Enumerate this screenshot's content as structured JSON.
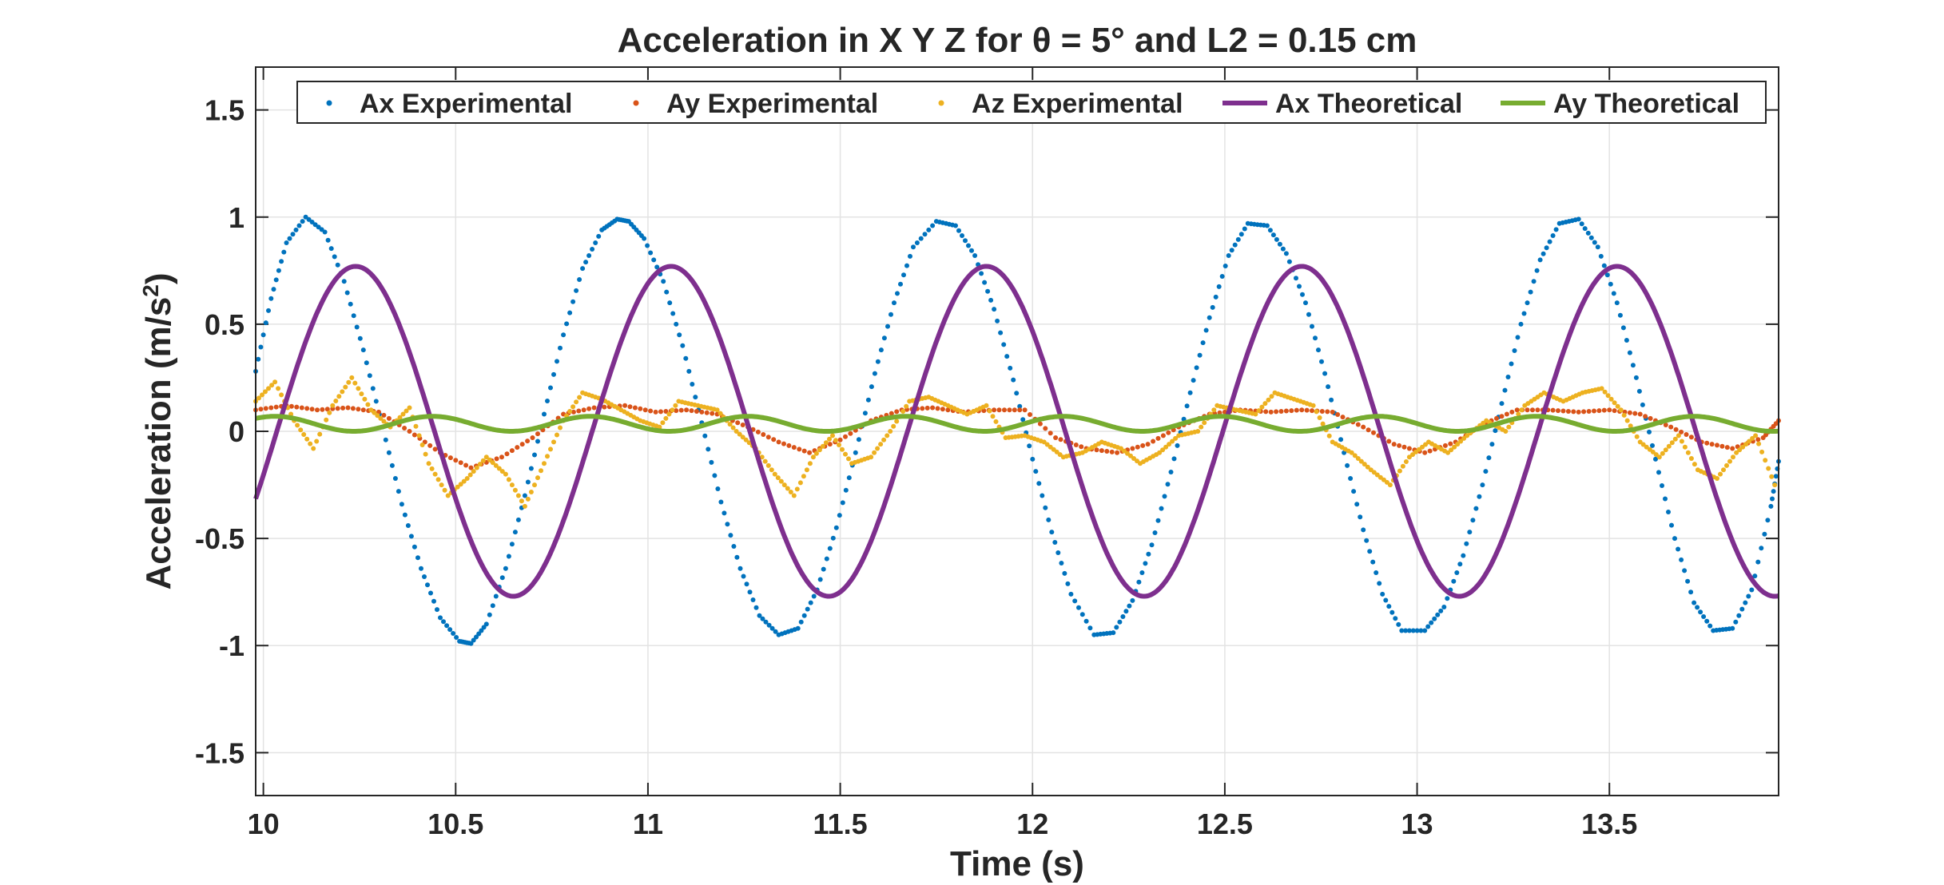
{
  "chart_data": {
    "type": "line",
    "title": "Acceleration in X Y Z for θ = 5° and L2 = 0.15 cm",
    "xlabel": "Time (s)",
    "ylabel_main": "Acceleration (m/s",
    "ylabel_sup": "2",
    "ylabel_close": ")",
    "xlim": [
      9.98,
      13.94
    ],
    "ylim": [
      -1.7,
      1.7
    ],
    "xticks": [
      10,
      10.5,
      11,
      11.5,
      12,
      12.5,
      13,
      13.5
    ],
    "xtick_labels": [
      "10",
      "10.5",
      "11",
      "11.5",
      "12",
      "12.5",
      "13",
      "13.5"
    ],
    "yticks": [
      -1.5,
      -1,
      -0.5,
      0,
      0.5,
      1,
      1.5
    ],
    "ytick_labels": [
      "-1.5",
      "-1",
      "-0.5",
      "0",
      "0.5",
      "1",
      "1.5"
    ],
    "grid": true,
    "legend_position": "top",
    "colors": {
      "ax_exp": "#0072bd",
      "ay_exp": "#d95319",
      "az_exp": "#edb120",
      "ax_theo": "#7e2f8e",
      "ay_theo": "#77ac30"
    },
    "series": [
      {
        "name": "Ax Experimental",
        "style": "dots",
        "color": "#0072bd",
        "x": [
          9.98,
          10.02,
          10.06,
          10.11,
          10.16,
          10.21,
          10.26,
          10.31,
          10.36,
          10.41,
          10.46,
          10.51,
          10.54,
          10.58,
          10.63,
          10.68,
          10.73,
          10.78,
          10.83,
          10.88,
          10.92,
          10.95,
          10.99,
          11.04,
          11.09,
          11.14,
          11.19,
          11.24,
          11.29,
          11.34,
          11.39,
          11.44,
          11.49,
          11.54,
          11.59,
          11.64,
          11.69,
          11.75,
          11.8,
          11.85,
          11.9,
          11.95,
          12.0,
          12.05,
          12.1,
          12.16,
          12.21,
          12.26,
          12.31,
          12.36,
          12.41,
          12.46,
          12.51,
          12.56,
          12.61,
          12.66,
          12.71,
          12.76,
          12.81,
          12.86,
          12.91,
          12.96,
          13.02,
          13.07,
          13.12,
          13.17,
          13.22,
          13.27,
          13.32,
          13.37,
          13.42,
          13.47,
          13.52,
          13.57,
          13.62,
          13.67,
          13.72,
          13.77,
          13.82,
          13.87,
          13.92,
          13.94
        ],
        "y": [
          0.28,
          0.62,
          0.88,
          1.0,
          0.93,
          0.7,
          0.38,
          0.02,
          -0.34,
          -0.64,
          -0.87,
          -0.98,
          -0.99,
          -0.9,
          -0.64,
          -0.3,
          0.08,
          0.45,
          0.76,
          0.94,
          0.99,
          0.98,
          0.9,
          0.7,
          0.4,
          0.04,
          -0.33,
          -0.64,
          -0.86,
          -0.95,
          -0.92,
          -0.74,
          -0.45,
          -0.1,
          0.27,
          0.6,
          0.86,
          0.98,
          0.96,
          0.82,
          0.57,
          0.24,
          -0.13,
          -0.47,
          -0.76,
          -0.95,
          -0.94,
          -0.79,
          -0.53,
          -0.19,
          0.18,
          0.53,
          0.82,
          0.97,
          0.96,
          0.83,
          0.6,
          0.27,
          -0.1,
          -0.46,
          -0.76,
          -0.93,
          -0.93,
          -0.82,
          -0.58,
          -0.25,
          0.13,
          0.5,
          0.8,
          0.97,
          0.99,
          0.86,
          0.6,
          0.25,
          -0.13,
          -0.5,
          -0.8,
          -0.93,
          -0.92,
          -0.74,
          -0.35,
          -0.14
        ]
      },
      {
        "name": "Ay Experimental",
        "style": "dots",
        "color": "#d95319",
        "x": [
          9.98,
          10.06,
          10.14,
          10.22,
          10.3,
          10.38,
          10.46,
          10.54,
          10.62,
          10.7,
          10.78,
          10.86,
          10.94,
          11.02,
          11.1,
          11.18,
          11.26,
          11.34,
          11.42,
          11.5,
          11.58,
          11.66,
          11.74,
          11.82,
          11.9,
          11.98,
          12.06,
          12.14,
          12.22,
          12.3,
          12.38,
          12.46,
          12.54,
          12.62,
          12.7,
          12.78,
          12.86,
          12.94,
          13.02,
          13.1,
          13.18,
          13.26,
          13.34,
          13.42,
          13.5,
          13.58,
          13.66,
          13.74,
          13.82,
          13.9,
          13.94
        ],
        "y": [
          0.1,
          0.12,
          0.1,
          0.11,
          0.09,
          0.0,
          -0.1,
          -0.17,
          -0.12,
          -0.03,
          0.08,
          0.11,
          0.12,
          0.09,
          0.1,
          0.08,
          0.02,
          -0.05,
          -0.1,
          -0.04,
          0.05,
          0.1,
          0.11,
          0.09,
          0.1,
          0.1,
          -0.03,
          -0.08,
          -0.1,
          -0.06,
          0.02,
          0.08,
          0.1,
          0.09,
          0.1,
          0.09,
          0.02,
          -0.06,
          -0.1,
          -0.05,
          0.04,
          0.1,
          0.1,
          0.09,
          0.1,
          0.08,
          0.02,
          -0.05,
          -0.08,
          -0.03,
          0.05
        ]
      },
      {
        "name": "Az Experimental",
        "style": "dots",
        "color": "#edb120",
        "x": [
          9.98,
          10.03,
          10.08,
          10.13,
          10.18,
          10.23,
          10.28,
          10.33,
          10.38,
          10.43,
          10.48,
          10.53,
          10.58,
          10.63,
          10.68,
          10.73,
          10.78,
          10.83,
          10.88,
          10.93,
          10.98,
          11.03,
          11.08,
          11.13,
          11.18,
          11.23,
          11.28,
          11.33,
          11.38,
          11.43,
          11.48,
          11.53,
          11.58,
          11.63,
          11.68,
          11.73,
          11.78,
          11.83,
          11.88,
          11.93,
          11.98,
          12.03,
          12.08,
          12.13,
          12.18,
          12.23,
          12.28,
          12.33,
          12.38,
          12.43,
          12.48,
          12.53,
          12.58,
          12.63,
          12.68,
          12.73,
          12.78,
          12.83,
          12.88,
          12.93,
          12.98,
          13.03,
          13.08,
          13.13,
          13.18,
          13.23,
          13.28,
          13.33,
          13.38,
          13.43,
          13.48,
          13.53,
          13.58,
          13.63,
          13.68,
          13.73,
          13.78,
          13.83,
          13.88,
          13.93
        ],
        "y": [
          0.14,
          0.23,
          0.05,
          -0.08,
          0.12,
          0.25,
          0.1,
          0.02,
          0.11,
          -0.15,
          -0.3,
          -0.22,
          -0.12,
          -0.2,
          -0.35,
          -0.15,
          0.05,
          0.18,
          0.15,
          0.1,
          0.05,
          0.02,
          0.14,
          0.12,
          0.1,
          0.0,
          -0.08,
          -0.2,
          -0.3,
          -0.12,
          -0.02,
          -0.15,
          -0.12,
          0.0,
          0.14,
          0.16,
          0.12,
          0.08,
          0.12,
          -0.03,
          -0.02,
          -0.05,
          -0.12,
          -0.1,
          -0.05,
          -0.08,
          -0.15,
          -0.1,
          -0.02,
          0.0,
          0.12,
          0.1,
          0.08,
          0.18,
          0.15,
          0.12,
          -0.05,
          -0.1,
          -0.18,
          -0.25,
          -0.12,
          -0.05,
          -0.1,
          -0.02,
          0.05,
          0.0,
          0.12,
          0.18,
          0.14,
          0.18,
          0.2,
          0.1,
          -0.05,
          -0.12,
          -0.02,
          -0.18,
          -0.22,
          -0.1,
          -0.02,
          -0.25
        ]
      },
      {
        "name": "Ax Theoretical",
        "style": "line",
        "color": "#7e2f8e",
        "amplitude": 0.77,
        "period": 0.82,
        "peak_at": 10.24
      },
      {
        "name": "Ay Theoretical",
        "style": "line",
        "color": "#77ac30",
        "offset": 0.035,
        "amplitude": 0.035,
        "period": 0.41,
        "peak_at": 10.03
      }
    ]
  }
}
